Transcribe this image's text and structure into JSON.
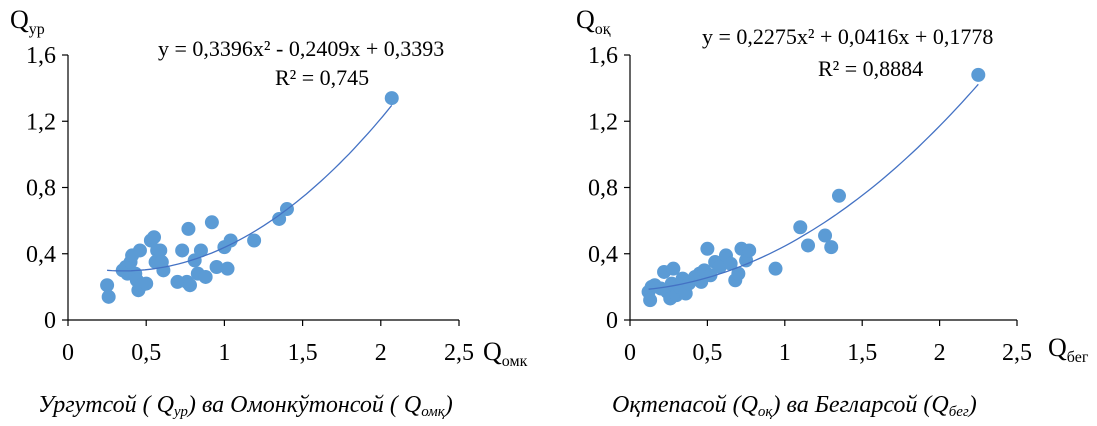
{
  "colors": {
    "marker": "#5b9bd5",
    "trendline": "#4472c4",
    "axis": "#000000"
  },
  "chart_data": [
    {
      "type": "scatter",
      "ylabel": {
        "main": "Q",
        "sub": "ур"
      },
      "xlabel": {
        "main": "Q",
        "sub": "омк"
      },
      "xlim": [
        0,
        2.5
      ],
      "ylim": [
        0,
        1.6
      ],
      "x_ticks": [
        "0",
        "0,5",
        "1",
        "1,5",
        "2",
        "2,5"
      ],
      "y_ticks": [
        "0",
        "0,4",
        "0,8",
        "1,2",
        "1,6"
      ],
      "grid": false,
      "equation": "y = 0,3396x² - 0,2409x + 0,3393",
      "r_squared": "R² = 0,745",
      "trendline": {
        "type": "polynomial",
        "order": 2,
        "coefficients": [
          0.3396,
          -0.2409,
          0.3393
        ],
        "x_range": [
          0.25,
          2.07
        ]
      },
      "caption": {
        "prefix": "Ургутсой ( Q",
        "sub1": "ур",
        "middle": ") ва Омонкўтонсой ( Q",
        "sub2": "омқ",
        "suffix": ")"
      },
      "points": [
        {
          "x": 0.25,
          "y": 0.21
        },
        {
          "x": 0.26,
          "y": 0.14
        },
        {
          "x": 0.35,
          "y": 0.3
        },
        {
          "x": 0.37,
          "y": 0.32
        },
        {
          "x": 0.38,
          "y": 0.28
        },
        {
          "x": 0.4,
          "y": 0.35
        },
        {
          "x": 0.41,
          "y": 0.39
        },
        {
          "x": 0.43,
          "y": 0.28
        },
        {
          "x": 0.44,
          "y": 0.24
        },
        {
          "x": 0.45,
          "y": 0.18
        },
        {
          "x": 0.46,
          "y": 0.42
        },
        {
          "x": 0.47,
          "y": 0.21
        },
        {
          "x": 0.5,
          "y": 0.22
        },
        {
          "x": 0.53,
          "y": 0.48
        },
        {
          "x": 0.55,
          "y": 0.5
        },
        {
          "x": 0.56,
          "y": 0.35
        },
        {
          "x": 0.57,
          "y": 0.42
        },
        {
          "x": 0.59,
          "y": 0.42
        },
        {
          "x": 0.6,
          "y": 0.35
        },
        {
          "x": 0.61,
          "y": 0.3
        },
        {
          "x": 0.7,
          "y": 0.23
        },
        {
          "x": 0.73,
          "y": 0.42
        },
        {
          "x": 0.76,
          "y": 0.23
        },
        {
          "x": 0.77,
          "y": 0.55
        },
        {
          "x": 0.78,
          "y": 0.21
        },
        {
          "x": 0.81,
          "y": 0.36
        },
        {
          "x": 0.83,
          "y": 0.28
        },
        {
          "x": 0.85,
          "y": 0.42
        },
        {
          "x": 0.88,
          "y": 0.26
        },
        {
          "x": 0.92,
          "y": 0.59
        },
        {
          "x": 0.95,
          "y": 0.32
        },
        {
          "x": 1.0,
          "y": 0.44
        },
        {
          "x": 1.02,
          "y": 0.31
        },
        {
          "x": 1.04,
          "y": 0.48
        },
        {
          "x": 1.19,
          "y": 0.48
        },
        {
          "x": 1.35,
          "y": 0.61
        },
        {
          "x": 1.4,
          "y": 0.67
        },
        {
          "x": 2.07,
          "y": 1.34
        }
      ]
    },
    {
      "type": "scatter",
      "ylabel": {
        "main": "Q",
        "sub": "оқ"
      },
      "xlabel": {
        "main": "Q",
        "sub": "бег"
      },
      "xlim": [
        0,
        2.5
      ],
      "ylim": [
        0,
        1.6
      ],
      "x_ticks": [
        "0",
        "0,5",
        "1",
        "1,5",
        "2",
        "2,5"
      ],
      "y_ticks": [
        "0",
        "0,4",
        "0,8",
        "1,2",
        "1,6"
      ],
      "grid": false,
      "equation": "y = 0,2275x² + 0,0416x + 0,1778",
      "r_squared": "R² = 0,8884",
      "trendline": {
        "type": "polynomial",
        "order": 2,
        "coefficients": [
          0.2275,
          0.0416,
          0.1778
        ],
        "x_range": [
          0.12,
          2.25
        ]
      },
      "caption": {
        "prefix": "Оқтепасой (Q",
        "sub1": "оқ",
        "middle": ") ва Бегларсой (Q",
        "sub2": "бег",
        "suffix": ")"
      },
      "points": [
        {
          "x": 0.12,
          "y": 0.17
        },
        {
          "x": 0.13,
          "y": 0.12
        },
        {
          "x": 0.14,
          "y": 0.2
        },
        {
          "x": 0.16,
          "y": 0.21
        },
        {
          "x": 0.2,
          "y": 0.19
        },
        {
          "x": 0.22,
          "y": 0.29
        },
        {
          "x": 0.24,
          "y": 0.17
        },
        {
          "x": 0.26,
          "y": 0.13
        },
        {
          "x": 0.27,
          "y": 0.22
        },
        {
          "x": 0.28,
          "y": 0.31
        },
        {
          "x": 0.3,
          "y": 0.15
        },
        {
          "x": 0.32,
          "y": 0.2
        },
        {
          "x": 0.34,
          "y": 0.25
        },
        {
          "x": 0.36,
          "y": 0.16
        },
        {
          "x": 0.38,
          "y": 0.22
        },
        {
          "x": 0.42,
          "y": 0.26
        },
        {
          "x": 0.45,
          "y": 0.28
        },
        {
          "x": 0.46,
          "y": 0.23
        },
        {
          "x": 0.48,
          "y": 0.3
        },
        {
          "x": 0.5,
          "y": 0.43
        },
        {
          "x": 0.52,
          "y": 0.27
        },
        {
          "x": 0.55,
          "y": 0.35
        },
        {
          "x": 0.58,
          "y": 0.32
        },
        {
          "x": 0.62,
          "y": 0.39
        },
        {
          "x": 0.65,
          "y": 0.34
        },
        {
          "x": 0.68,
          "y": 0.24
        },
        {
          "x": 0.7,
          "y": 0.28
        },
        {
          "x": 0.72,
          "y": 0.43
        },
        {
          "x": 0.75,
          "y": 0.36
        },
        {
          "x": 0.77,
          "y": 0.42
        },
        {
          "x": 0.94,
          "y": 0.31
        },
        {
          "x": 1.1,
          "y": 0.56
        },
        {
          "x": 1.15,
          "y": 0.45
        },
        {
          "x": 1.26,
          "y": 0.51
        },
        {
          "x": 1.3,
          "y": 0.44
        },
        {
          "x": 1.35,
          "y": 0.75
        },
        {
          "x": 2.25,
          "y": 1.48
        }
      ]
    }
  ]
}
